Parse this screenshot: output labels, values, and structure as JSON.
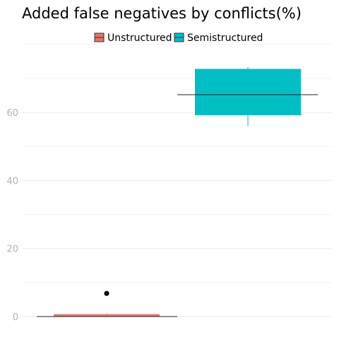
{
  "chart_data": {
    "type": "box",
    "title": "Added false negatives by conflicts(%)",
    "xlabel": "",
    "ylabel": "",
    "ylim": [
      -0.5,
      80
    ],
    "yticks": [
      0,
      20,
      40,
      60
    ],
    "grid": true,
    "legend_placement": "top",
    "series": [
      {
        "name": "Unstructured",
        "color": "#E8736C",
        "box": {
          "whisker_low": 0,
          "q1": 0,
          "median": 0,
          "q3": 0.7,
          "whisker_high": 0.9
        },
        "outliers": [
          6.8
        ]
      },
      {
        "name": "Semistructured",
        "color": "#00BFC4",
        "box": {
          "whisker_low": 56,
          "q1": 59.2,
          "median": 65.2,
          "q3": 72.8,
          "whisker_high": 73.3
        },
        "outliers": []
      }
    ]
  }
}
